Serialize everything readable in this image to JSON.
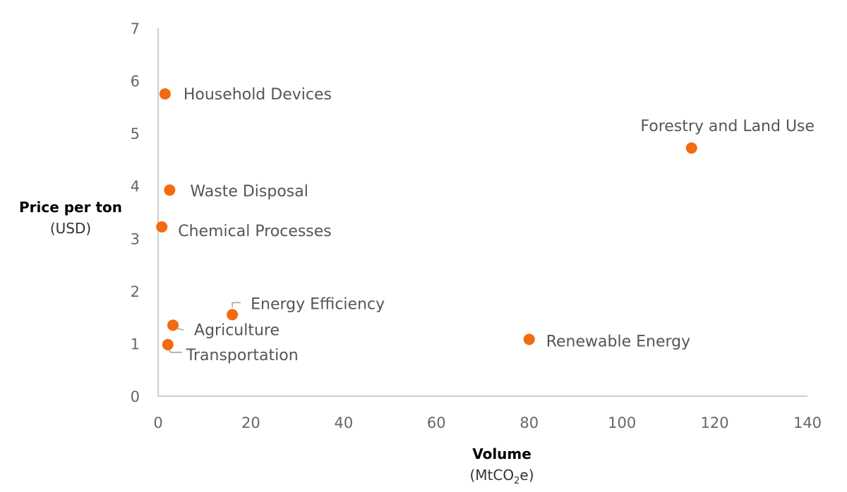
{
  "chart_data": {
    "type": "scatter",
    "title": "",
    "xlabel": "Volume",
    "xlabel_unit_prefix": "(MtCO",
    "xlabel_unit_sub": "2",
    "xlabel_unit_suffix": "e)",
    "ylabel": "Price per ton",
    "ylabel_unit": "(USD)",
    "xlim": [
      0,
      140
    ],
    "ylim": [
      0,
      7
    ],
    "x_ticks": [
      0,
      20,
      40,
      60,
      80,
      100,
      120,
      140
    ],
    "y_ticks": [
      0,
      1,
      2,
      3,
      4,
      5,
      6,
      7
    ],
    "grid": false,
    "marker_color": "#f26b10",
    "points": [
      {
        "name": "Household Devices",
        "x": 1.5,
        "y": 5.75
      },
      {
        "name": "Forestry and Land Use",
        "x": 115,
        "y": 4.72
      },
      {
        "name": "Waste Disposal",
        "x": 2.5,
        "y": 3.92
      },
      {
        "name": "Chemical Processes",
        "x": 0.8,
        "y": 3.22
      },
      {
        "name": "Energy Efficiency",
        "x": 16,
        "y": 1.55
      },
      {
        "name": "Agriculture",
        "x": 3.2,
        "y": 1.35
      },
      {
        "name": "Transportation",
        "x": 2.1,
        "y": 0.98
      },
      {
        "name": "Renewable Energy",
        "x": 80,
        "y": 1.08
      }
    ]
  }
}
